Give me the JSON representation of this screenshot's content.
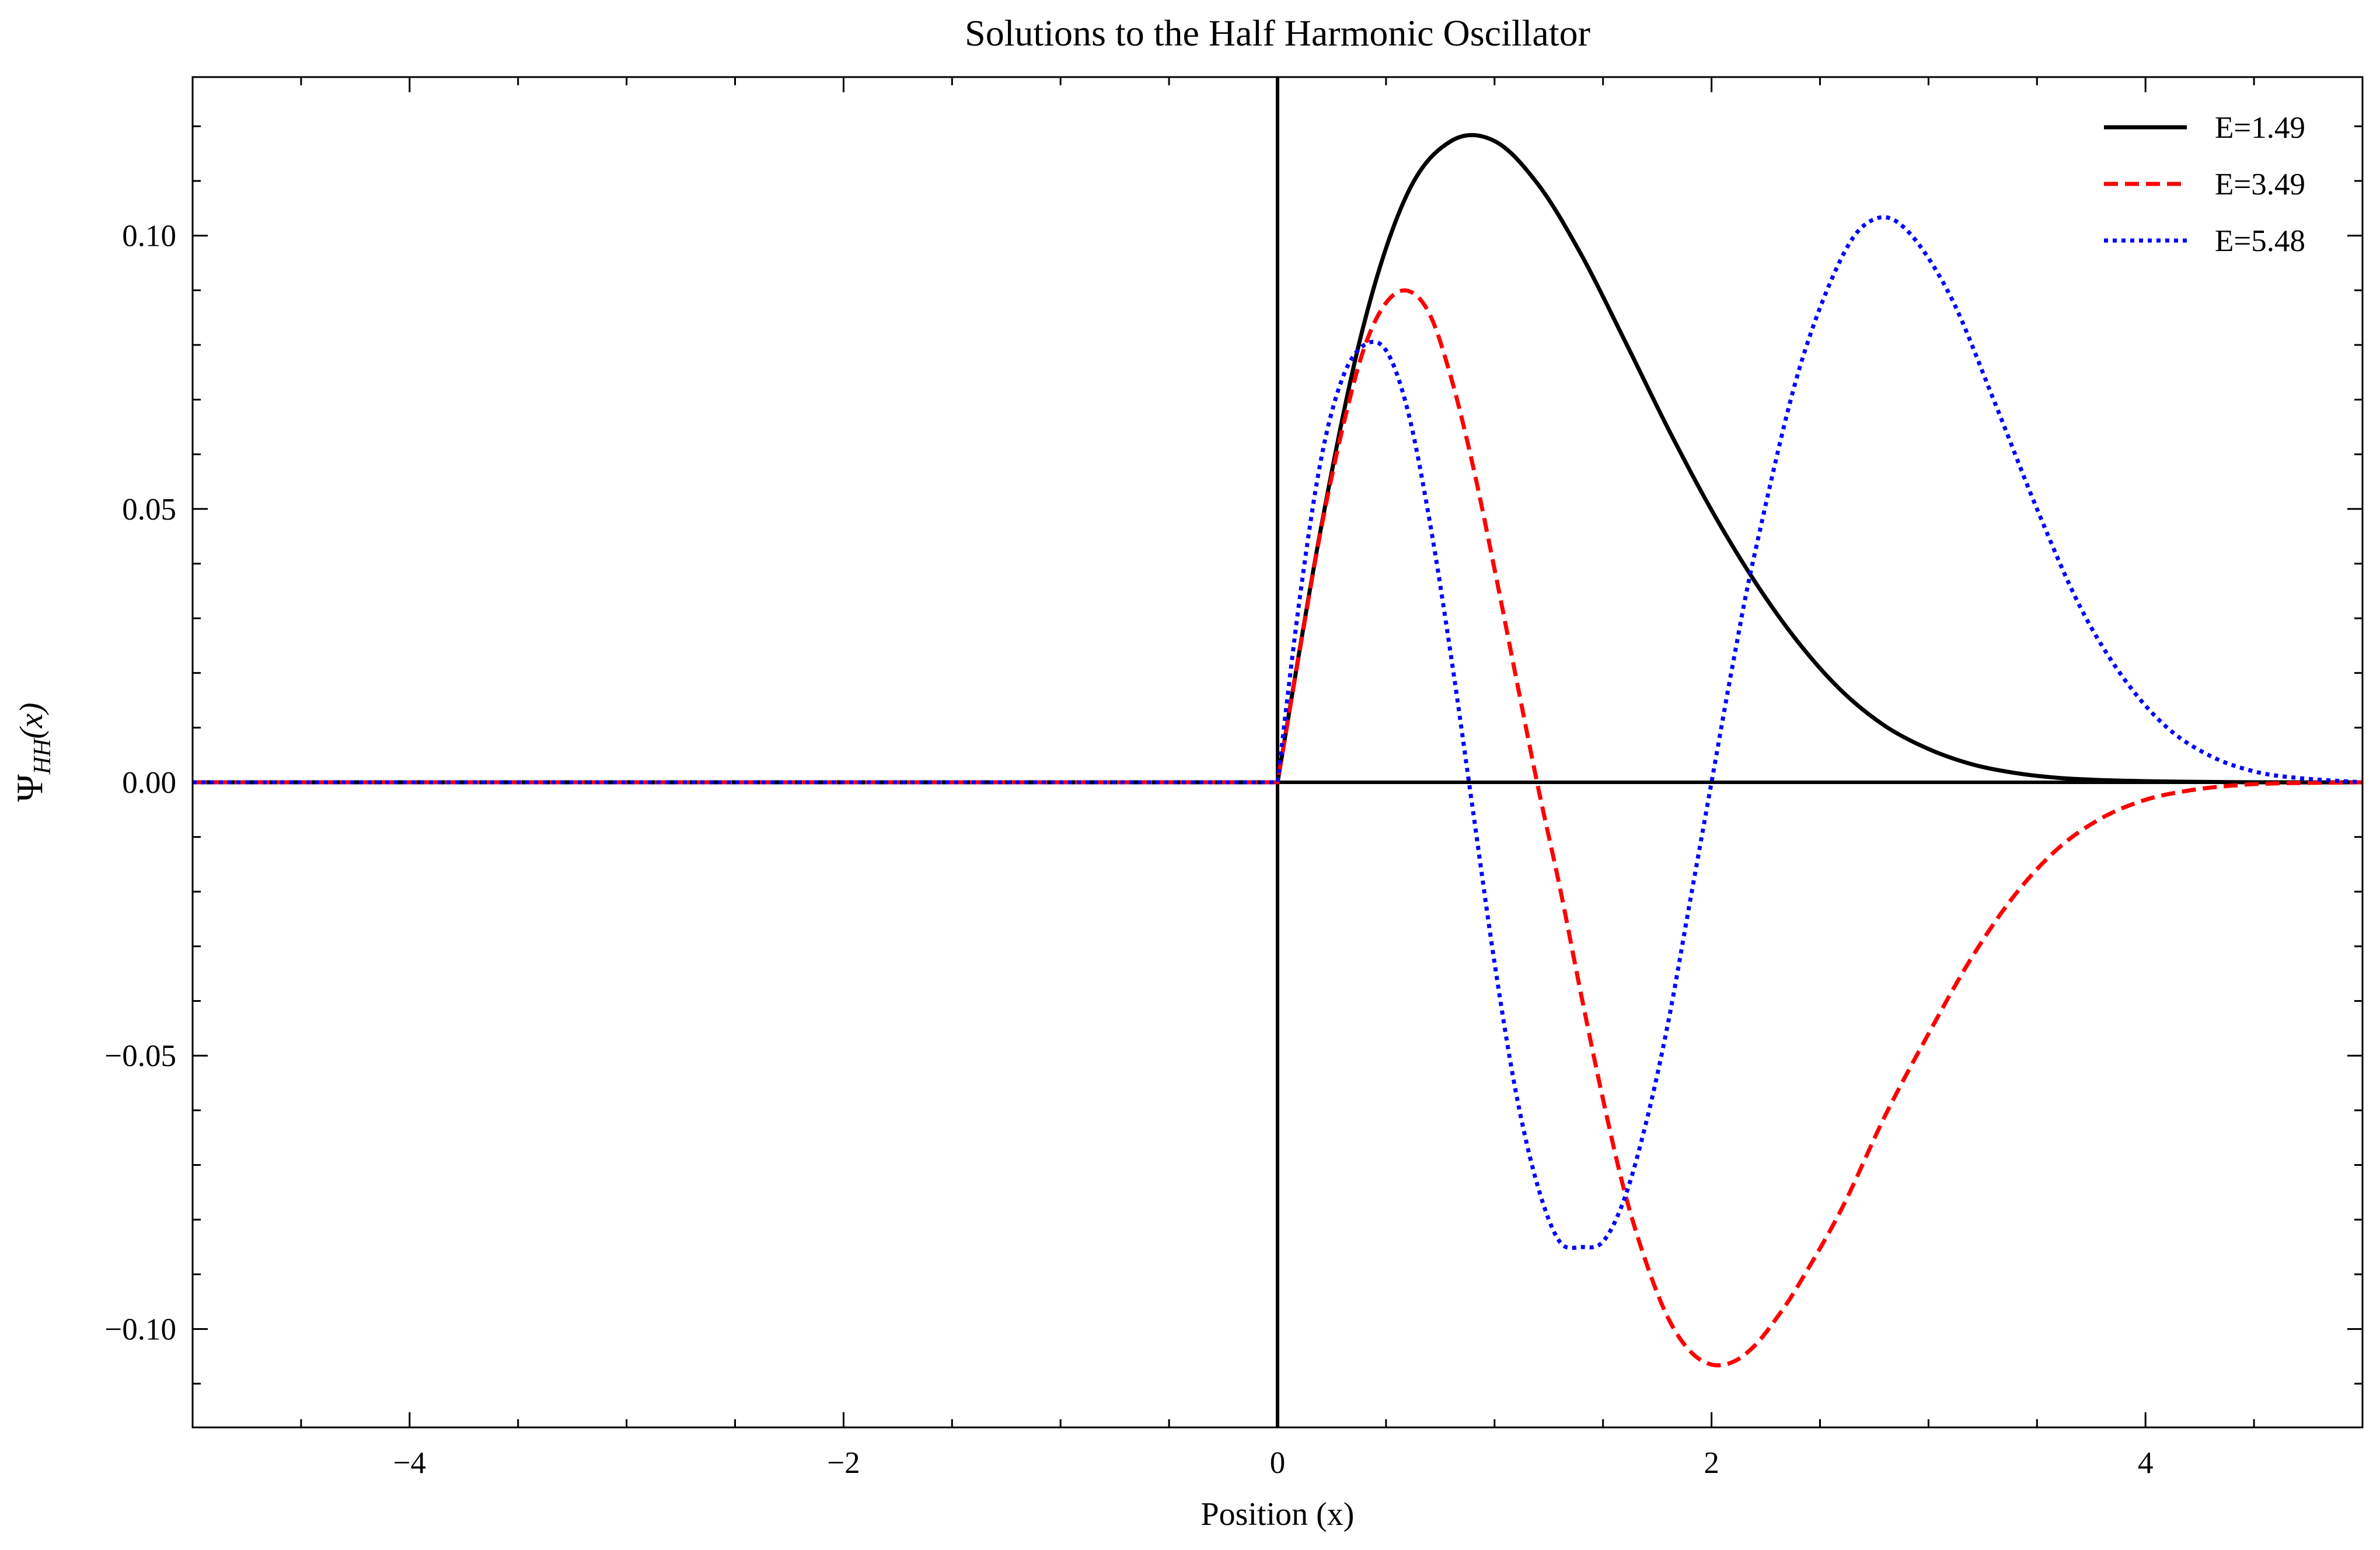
{
  "chart_data": {
    "type": "line",
    "title": "Solutions to the Half Harmonic Oscillator",
    "xlabel": "Position (x)",
    "ylabel": {
      "main": "Ψ",
      "sub": "HH",
      "arg": "(x)"
    },
    "xlim": [
      -5,
      5
    ],
    "ylim": [
      -0.118,
      0.129
    ],
    "xticks": [
      {
        "value": -4,
        "label": "−4"
      },
      {
        "value": -2,
        "label": "−2"
      },
      {
        "value": 0,
        "label": "0"
      },
      {
        "value": 2,
        "label": "2"
      },
      {
        "value": 4,
        "label": "4"
      }
    ],
    "yticks": [
      {
        "value": -0.1,
        "label": "−0.10"
      },
      {
        "value": -0.05,
        "label": "−0.05"
      },
      {
        "value": 0.0,
        "label": "0.00"
      },
      {
        "value": 0.05,
        "label": "0.05"
      },
      {
        "value": 0.1,
        "label": "0.10"
      }
    ],
    "x_minor_step": 0.5,
    "y_minor_step": 0.01,
    "reference_lines": {
      "x": 0,
      "y": 0
    },
    "legend": {
      "position": "top-right"
    },
    "series": [
      {
        "name": "E=1.49",
        "color": "#000000",
        "style": "solid",
        "x": [
          -5,
          0,
          0.2,
          0.4,
          0.6,
          0.8,
          1.0,
          1.2,
          1.4,
          1.6,
          1.8,
          2.0,
          2.2,
          2.4,
          2.6,
          2.8,
          3.0,
          3.2,
          3.4,
          3.6,
          3.8,
          4.0,
          4.2,
          4.5,
          5.0
        ],
        "y": [
          0,
          0,
          0.0465,
          0.0841,
          0.1078,
          0.1173,
          0.1173,
          0.1094,
          0.0965,
          0.0808,
          0.0647,
          0.0498,
          0.0367,
          0.0256,
          0.0167,
          0.0103,
          0.0061,
          0.0033,
          0.0017,
          0.0008,
          0.0004,
          0.0002,
          0.0001,
          0.0,
          0.0
        ]
      },
      {
        "name": "E=3.49",
        "color": "#ff0000",
        "style": "dashed",
        "x": [
          -5,
          0,
          0.1,
          0.2,
          0.3,
          0.4,
          0.5,
          0.6,
          0.7,
          0.8,
          0.9,
          1.0,
          1.1,
          1.2,
          1.3,
          1.4,
          1.5,
          1.6,
          1.7,
          1.8,
          1.9,
          2.0,
          2.1,
          2.2,
          2.3,
          2.4,
          2.6,
          2.8,
          3.0,
          3.2,
          3.4,
          3.6,
          3.8,
          4.0,
          4.2,
          4.4,
          4.6,
          5.0
        ],
        "y": [
          0,
          0,
          0.0236,
          0.0462,
          0.0648,
          0.0795,
          0.0877,
          0.0899,
          0.0857,
          0.074,
          0.058,
          0.039,
          0.019,
          -0.0008,
          -0.019,
          -0.039,
          -0.058,
          -0.075,
          -0.088,
          -0.098,
          -0.104,
          -0.1065,
          -0.106,
          -0.103,
          -0.098,
          -0.092,
          -0.078,
          -0.061,
          -0.046,
          -0.032,
          -0.0205,
          -0.012,
          -0.0065,
          -0.0032,
          -0.0015,
          -0.0006,
          -0.0002,
          0.0
        ]
      },
      {
        "name": "E=5.48",
        "color": "#0000ff",
        "style": "dotted",
        "x": [
          -5,
          0,
          0.1,
          0.2,
          0.3,
          0.4,
          0.5,
          0.6,
          0.7,
          0.8,
          0.9,
          1.0,
          1.1,
          1.2,
          1.3,
          1.4,
          1.5,
          1.6,
          1.7,
          1.8,
          1.9,
          2.0,
          2.1,
          2.2,
          2.4,
          2.6,
          2.75,
          2.9,
          3.1,
          3.3,
          3.5,
          3.7,
          3.9,
          4.1,
          4.3,
          4.5,
          4.7,
          5.0
        ],
        "y": [
          0,
          0,
          0.033,
          0.059,
          0.074,
          0.08,
          0.079,
          0.068,
          0.048,
          0.023,
          -0.005,
          -0.033,
          -0.057,
          -0.074,
          -0.084,
          -0.085,
          -0.084,
          -0.076,
          -0.062,
          -0.044,
          -0.022,
          0.0,
          0.022,
          0.042,
          0.075,
          0.096,
          0.103,
          0.101,
          0.089,
          0.07,
          0.05,
          0.032,
          0.019,
          0.01,
          0.0048,
          0.002,
          0.0008,
          0.0
        ]
      }
    ]
  }
}
